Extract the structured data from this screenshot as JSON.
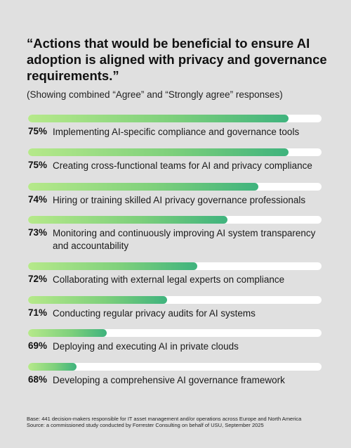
{
  "header": {
    "title": "“Actions that would be beneficial to ensure AI adoption is aligned with privacy and governance requirements.”",
    "subtitle": "(Showing combined “Agree” and “Strongly agree” responses)"
  },
  "colors": {
    "background": "#e0e0e0",
    "track": "#ffffff",
    "bar_gradient_start": "#b6e98a",
    "bar_gradient_end": "#3fb37d"
  },
  "chart_data": {
    "type": "bar",
    "orientation": "horizontal",
    "categories": [
      "Implementing AI-specific compliance and governance tools",
      "Creating cross-functional teams for AI and privacy compliance",
      "Hiring or training skilled AI privacy governance professionals",
      "Monitoring and continuously improving AI system transparency and accountability",
      "Collaborating with external legal experts on compliance",
      "Conducting regular privacy audits for AI systems",
      "Deploying and executing AI in private clouds",
      "Developing a comprehensive AI governance framework"
    ],
    "values": [
      75,
      75,
      74,
      73,
      72,
      71,
      69,
      68
    ],
    "value_labels": [
      "75%",
      "75%",
      "74%",
      "73%",
      "72%",
      "71%",
      "69%",
      "68%"
    ],
    "title": "“Actions that would be beneficial to ensure AI adoption is aligned with privacy and governance requirements.”",
    "subtitle": "(Showing combined “Agree” and “Strongly agree” responses)",
    "xlabel": "",
    "ylabel": "",
    "grid": false,
    "legend": "none"
  },
  "footnote": {
    "base": "Base: 441 decision-makers responsible for IT asset management and/or operations across Europe and North America",
    "source": "Source: a commissioned study conducted by Forrester Consulting on behalf of USU, September 2025"
  }
}
